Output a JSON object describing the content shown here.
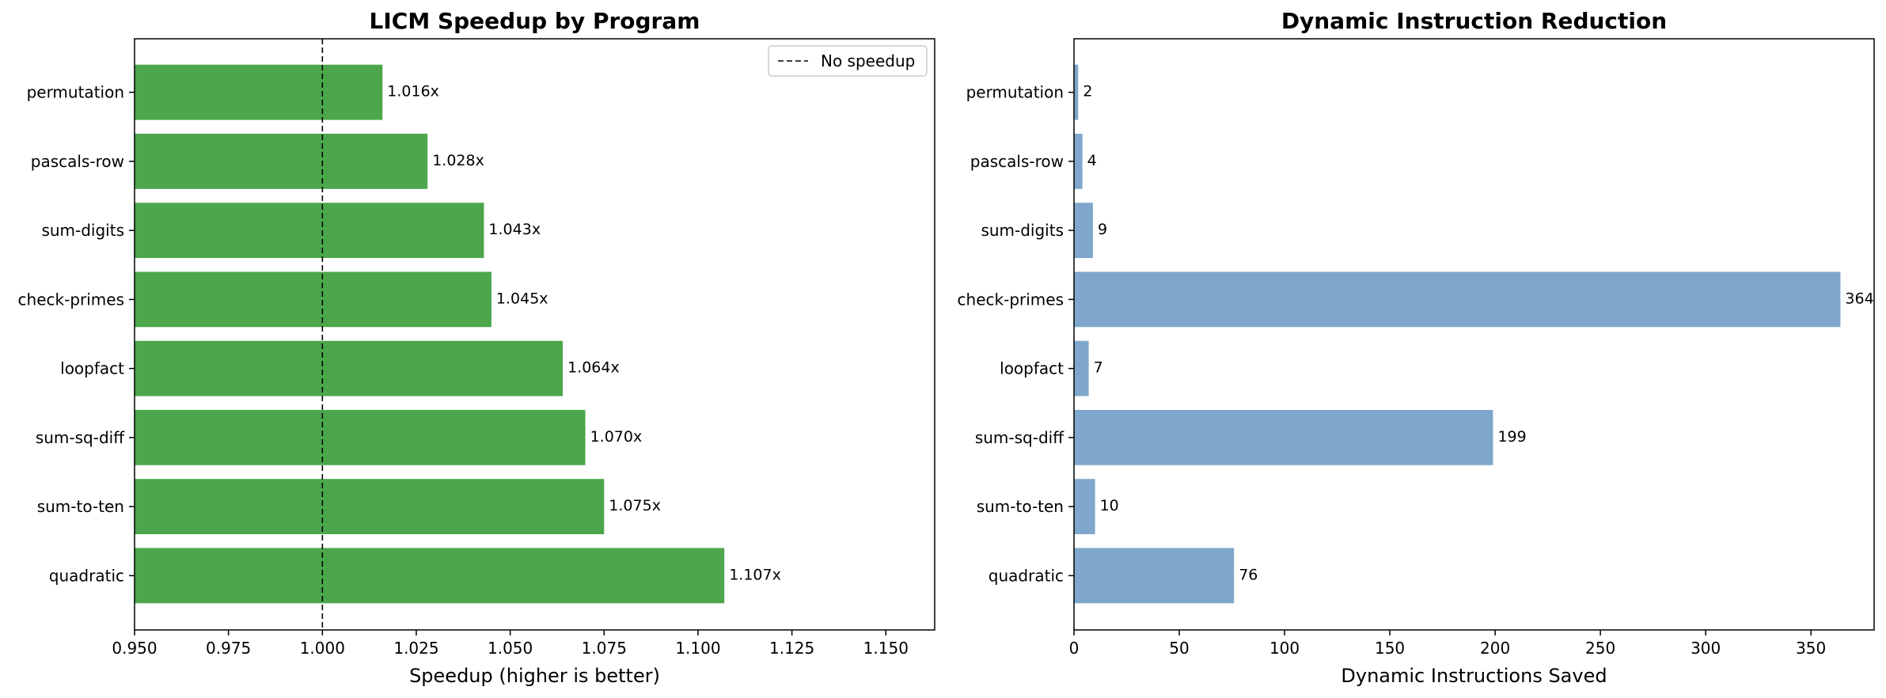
{
  "chart_data": [
    {
      "type": "bar",
      "orientation": "horizontal",
      "title": "LICM Speedup by Program",
      "xlabel": "Speedup (higher is better)",
      "ylabel": "",
      "categories": [
        "permutation",
        "pascals-row",
        "sum-digits",
        "check-primes",
        "loopfact",
        "sum-sq-diff",
        "sum-to-ten",
        "quadratic"
      ],
      "values": [
        1.016,
        1.028,
        1.043,
        1.045,
        1.064,
        1.07,
        1.075,
        1.107
      ],
      "data_labels": [
        "1.016x",
        "1.028x",
        "1.043x",
        "1.045x",
        "1.064x",
        "1.070x",
        "1.075x",
        "1.107x"
      ],
      "xlim": [
        0.95,
        1.163
      ],
      "xticks": [
        0.95,
        0.975,
        1.0,
        1.025,
        1.05,
        1.075,
        1.1,
        1.125,
        1.15
      ],
      "xtick_labels": [
        "0.950",
        "0.975",
        "1.000",
        "1.025",
        "1.050",
        "1.075",
        "1.100",
        "1.125",
        "1.150"
      ],
      "bar_color": "#4ca64c",
      "reference_line": {
        "x": 1.0,
        "style": "dashed",
        "label": "No speedup"
      },
      "legend": {
        "position": "top-right",
        "entries": [
          "No speedup"
        ]
      },
      "grid": false
    },
    {
      "type": "bar",
      "orientation": "horizontal",
      "title": "Dynamic Instruction Reduction",
      "xlabel": "Dynamic Instructions Saved",
      "ylabel": "",
      "categories": [
        "permutation",
        "pascals-row",
        "sum-digits",
        "check-primes",
        "loopfact",
        "sum-sq-diff",
        "sum-to-ten",
        "quadratic"
      ],
      "values": [
        2,
        4,
        9,
        364,
        7,
        199,
        10,
        76
      ],
      "data_labels": [
        "2",
        "4",
        "9",
        "364",
        "7",
        "199",
        "10",
        "76"
      ],
      "xlim": [
        0,
        380
      ],
      "xticks": [
        0,
        50,
        100,
        150,
        200,
        250,
        300,
        350
      ],
      "xtick_labels": [
        "0",
        "50",
        "100",
        "150",
        "200",
        "250",
        "300",
        "350"
      ],
      "bar_color": "#7fa7cb",
      "grid": false
    }
  ]
}
